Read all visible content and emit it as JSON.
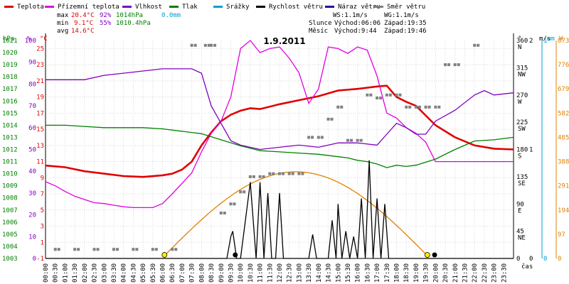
{
  "legend": [
    {
      "label": "Teplota",
      "color": "#e00000"
    },
    {
      "label": "Přízemní teplota",
      "color": "#e000e0"
    },
    {
      "label": "Vlhkost",
      "color": "#8000c0"
    },
    {
      "label": "Tlak",
      "color": "#008000"
    },
    {
      "label": "Srážky",
      "color": "#00a0d0"
    },
    {
      "label": "Rychlost větru",
      "color": "#000000"
    },
    {
      "label": "Náraz větru",
      "color": "#3000a0"
    },
    {
      "label": "Směr větru",
      "color": "#808080"
    }
  ],
  "stats": {
    "max_label": "max",
    "max_temp": "20.4°C",
    "max_hum": "92%",
    "max_press": "1014hPa",
    "max_rain": "0.0mm",
    "min_label": "min",
    "min_temp": "9.1°C",
    "min_hum": "55%",
    "min_press": "1010.4hPa",
    "avg_label": "avg",
    "avg_temp": "14.6°C",
    "ws": "WS:1.1m/s",
    "wg": "WG:1.1m/s",
    "sun_label": "Slunce",
    "sun_rise": "Východ:06:06",
    "sun_set": "Západ:19:35",
    "moon_label": "Měsíc",
    "moon_rise": "Východ:9:44",
    "moon_set": "Západ:19:46"
  },
  "chart_data": {
    "type": "line",
    "title": "1.9.2011",
    "unit_labels": {
      "hpa": "hPa",
      "pct": "%",
      "degc": "°C",
      "deg": "°",
      "ms": "m/s",
      "mm": "mm",
      "w": "W",
      "time": "čas"
    },
    "x_ticks": [
      "00:00",
      "00:30",
      "01:00",
      "01:30",
      "02:00",
      "02:30",
      "03:00",
      "03:30",
      "04:00",
      "04:30",
      "05:00",
      "05:30",
      "06:00",
      "06:30",
      "07:00",
      "07:30",
      "08:00",
      "08:30",
      "09:00",
      "09:30",
      "10:00",
      "10:30",
      "11:00",
      "11:30",
      "12:00",
      "12:30",
      "13:00",
      "13:30",
      "14:00",
      "14:30",
      "15:00",
      "15:30",
      "16:00",
      "16:30",
      "17:00",
      "17:30",
      "18:00",
      "18:30",
      "19:00",
      "19:30",
      "20:00",
      "20:30",
      "21:00",
      "21:30",
      "22:00",
      "22:30",
      "23:00",
      "23:30"
    ],
    "axes": {
      "hpa": [
        "1003",
        "1004",
        "1005",
        "1006",
        "1007",
        "1008",
        "1009",
        "1010",
        "1011",
        "1012",
        "1013",
        "1014",
        "1015",
        "1016",
        "1017",
        "1018",
        "1019",
        "1020",
        "1021"
      ],
      "pct": [
        "0",
        "10",
        "20",
        "30",
        "40",
        "50",
        "60",
        "70",
        "80",
        "90",
        "100"
      ],
      "degc": [
        "-1",
        "1",
        "3",
        "5",
        "7",
        "9",
        "11",
        "13",
        "15",
        "17",
        "19",
        "21",
        "23",
        "25"
      ],
      "dir": [
        "0",
        "45",
        "90",
        "135",
        "180",
        "225",
        "270",
        "315",
        "360"
      ],
      "dir_names": [
        "",
        "NE",
        "E",
        "SE",
        "S",
        "SW",
        "W",
        "NW",
        "N"
      ],
      "ms": [
        "0",
        "1",
        "2"
      ],
      "mm": [
        "0",
        "1"
      ],
      "w": [
        "0",
        "97",
        "194",
        "291",
        "388",
        "485",
        "582",
        "679",
        "776",
        "873"
      ]
    },
    "series": [
      {
        "name": "Teplota",
        "axis": "degc",
        "color": "#e00000",
        "x": [
          0,
          1,
          2,
          3,
          4,
          5,
          6,
          6.5,
          7,
          7.5,
          8,
          8.5,
          9,
          9.5,
          10,
          10.5,
          11,
          12,
          13,
          14,
          15,
          16,
          17,
          17.5,
          18,
          18.5,
          19,
          20,
          21,
          22,
          23,
          24
        ],
        "y": [
          10.5,
          10.3,
          9.8,
          9.5,
          9.2,
          9.1,
          9.3,
          9.5,
          10,
          11,
          13,
          14.6,
          16,
          16.8,
          17.3,
          17.6,
          17.5,
          18.1,
          18.6,
          19.1,
          19.8,
          20,
          20.3,
          20.4,
          19,
          18.4,
          17.9,
          15.5,
          14,
          13,
          12.6,
          12.5
        ]
      },
      {
        "name": "Přízemní teplota",
        "axis": "degc",
        "color": "#e000e0",
        "x": [
          0,
          0.5,
          1,
          1.5,
          2,
          2.5,
          3,
          3.5,
          4,
          4.5,
          5,
          5.5,
          6,
          6.5,
          7,
          7.5,
          8,
          8.5,
          9,
          9.5,
          10,
          10.5,
          11,
          11.5,
          12,
          12.5,
          13,
          13.5,
          14,
          14.5,
          15,
          15.5,
          16,
          16.5,
          17,
          17.5,
          18,
          18.5,
          19,
          19.5,
          20,
          21,
          22,
          23,
          24
        ],
        "y": [
          8.5,
          8,
          7.3,
          6.7,
          6.3,
          5.9,
          5.8,
          5.6,
          5.4,
          5.3,
          5.3,
          5.3,
          5.8,
          7,
          8.3,
          9.6,
          12.2,
          14.5,
          16,
          19,
          25,
          26,
          24.5,
          25,
          25.2,
          23.8,
          22,
          18.2,
          20,
          25.2,
          25,
          24.4,
          25.2,
          24.8,
          21.6,
          17,
          16.4,
          15.2,
          14.5,
          13.4,
          11,
          11,
          11,
          11,
          11
        ]
      },
      {
        "name": "Vlhkost",
        "axis": "pct",
        "color": "#8000c0",
        "x": [
          0,
          1,
          1.5,
          2,
          3,
          4,
          5,
          6,
          7,
          7.5,
          8,
          8.5,
          9,
          9.5,
          10,
          11,
          12,
          13,
          14,
          14.5,
          15,
          15.5,
          16,
          17,
          17.5,
          18,
          18.5,
          19,
          19.5,
          20,
          21,
          22,
          22.5,
          23,
          24
        ],
        "y": [
          82,
          82,
          82,
          82,
          84,
          85,
          86,
          87,
          87,
          87,
          85,
          70,
          62,
          54,
          52,
          50,
          51,
          52,
          51,
          52,
          53,
          53,
          53,
          52,
          57,
          62,
          60,
          57,
          57,
          63,
          68,
          75,
          77,
          75,
          76
        ]
      },
      {
        "name": "Tlak",
        "axis": "hpa",
        "color": "#008000",
        "x": [
          0,
          1,
          2,
          3,
          4,
          5,
          6,
          7,
          7.5,
          8,
          9,
          10,
          11,
          12,
          13,
          14,
          15,
          15.5,
          16,
          16.5,
          17,
          17.5,
          18,
          18.5,
          19,
          20,
          21,
          22,
          23,
          24
        ],
        "y": [
          1014,
          1014,
          1013.9,
          1013.8,
          1013.8,
          1013.8,
          1013.7,
          1013.5,
          1013.4,
          1013.3,
          1012.8,
          1012.3,
          1011.9,
          1011.8,
          1011.7,
          1011.6,
          1011.4,
          1011.3,
          1011.1,
          1011,
          1010.8,
          1010.5,
          1010.7,
          1010.6,
          1010.7,
          1011.2,
          1012,
          1012.7,
          1012.8,
          1013
        ]
      },
      {
        "name": "Rychlost větru",
        "axis": "ms",
        "color": "#000000",
        "x": [
          0,
          9.3,
          9.5,
          9.6,
          9.8,
          10,
          10.5,
          10.8,
          11,
          11.2,
          11.4,
          11.6,
          11.8,
          12,
          12.2,
          12.4,
          13.5,
          13.7,
          13.9,
          14.5,
          14.7,
          14.9,
          15,
          15.2,
          15.4,
          15.6,
          15.8,
          16,
          16.2,
          16.4,
          16.6,
          16.8,
          17,
          17.2,
          17.4,
          17.6,
          24
        ],
        "y": [
          0,
          0,
          0.2,
          0.25,
          0,
          0,
          0.7,
          0,
          0.7,
          0,
          0.6,
          0,
          0,
          0.6,
          0,
          0,
          0,
          0.22,
          0,
          0,
          0.35,
          0,
          0.5,
          0,
          0.25,
          0,
          0.2,
          0,
          0.55,
          0,
          0.9,
          0,
          0.55,
          0,
          0.5,
          0,
          0
        ]
      },
      {
        "name": "Směr větru",
        "axis": "dir",
        "color": "#808080",
        "x": [
          0.5,
          1.5,
          2.5,
          3.5,
          4.5,
          5.5,
          6.5,
          7.5,
          8.2,
          8.5,
          9,
          9.5,
          10,
          10.5,
          11,
          11.5,
          12,
          12.5,
          13,
          13.5,
          14,
          14.5,
          15,
          15.5,
          16,
          16.5,
          17,
          17.5,
          18,
          18.5,
          19,
          19.5,
          20,
          20.5,
          21,
          22
        ],
        "y": [
          15,
          15,
          15,
          15,
          15,
          15,
          15,
          352,
          352,
          352,
          75,
          90,
          110,
          135,
          135,
          140,
          140,
          140,
          140,
          200,
          200,
          230,
          250,
          195,
          195,
          270,
          265,
          270,
          270,
          250,
          250,
          250,
          250,
          320,
          320,
          352
        ]
      }
    ],
    "sun": {
      "rise": "06:06",
      "set": "19:35",
      "path_peak": "13:00"
    },
    "markers": {
      "sunrise": 6.1,
      "sunset": 19.58,
      "moonrise": 9.73,
      "moonset": 19.77
    }
  }
}
